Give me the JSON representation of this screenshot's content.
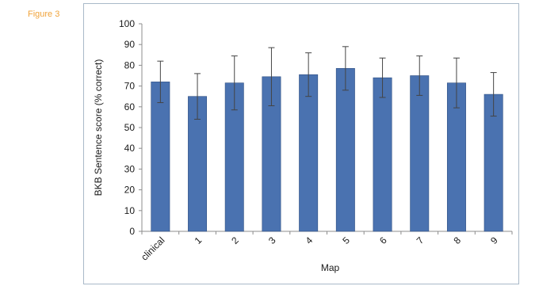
{
  "figure_label": "Figure 3",
  "chart_data": {
    "type": "bar",
    "categories": [
      "clinical",
      "1",
      "2",
      "3",
      "4",
      "5",
      "6",
      "7",
      "8",
      "9"
    ],
    "values": [
      72,
      65,
      71.5,
      74.5,
      75.5,
      78.5,
      74,
      75,
      71.5,
      66
    ],
    "error_plus": [
      10,
      11,
      13,
      14,
      10.5,
      10.5,
      9.5,
      9.5,
      12,
      10.5
    ],
    "error_minus": [
      10,
      11,
      13,
      14,
      10.5,
      10.5,
      9.5,
      9.5,
      12,
      10.5
    ],
    "xlabel": "Map",
    "ylabel": "BKB Sentence score (% correct)",
    "ylim": [
      0,
      100
    ],
    "yticks": [
      0,
      10,
      20,
      30,
      40,
      50,
      60,
      70,
      80,
      90,
      100
    ],
    "grid": false,
    "bar_color": "#4a72b0",
    "bar_edge_color": "#2f4f82"
  }
}
